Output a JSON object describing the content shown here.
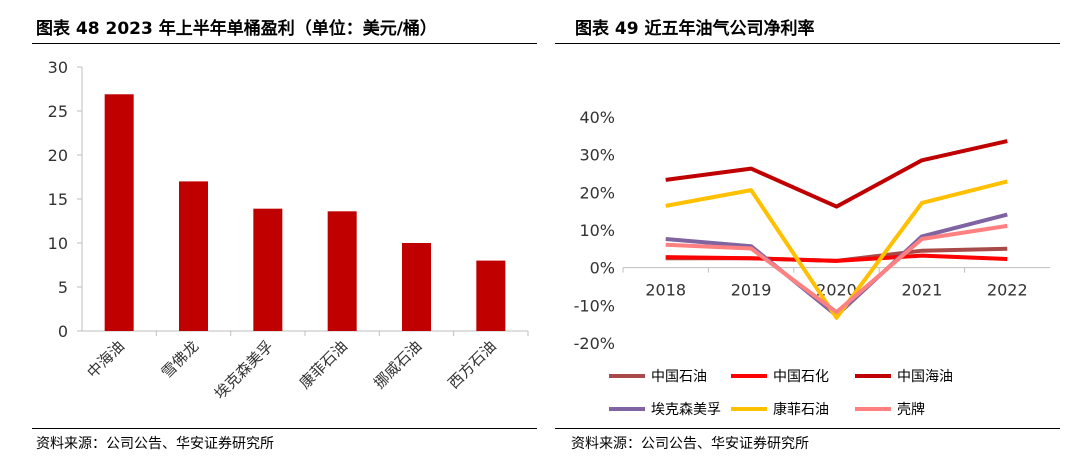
{
  "left": {
    "title": "图表 48  2023 年上半年单桶盈利（单位：美元/桶）",
    "source": "资料来源：公司公告、华安证券研究所"
  },
  "right": {
    "title": "图表 49 近五年油气公司净利率",
    "source": "资料来源：公司公告、华安证券研究所"
  },
  "chart_data": [
    {
      "type": "bar",
      "title": "2023 年上半年单桶盈利（单位：美元/桶）",
      "categories": [
        "中海油",
        "雪佛龙",
        "埃克森美孚",
        "康菲石油",
        "挪威石油",
        "西方石油"
      ],
      "values": [
        26.9,
        17.0,
        13.9,
        13.6,
        10.0,
        8.0
      ],
      "ylim": [
        0,
        30
      ],
      "yticks": [
        "0",
        "5",
        "10",
        "15",
        "20",
        "25",
        "30"
      ],
      "color": "#c00000",
      "xlabel": "",
      "ylabel": ""
    },
    {
      "type": "line",
      "title": "近五年油气公司净利率",
      "x": [
        "2018",
        "2019",
        "2020",
        "2021",
        "2022"
      ],
      "ylim": [
        -20,
        40
      ],
      "yticks": [
        "-20%",
        "-10%",
        "0%",
        "10%",
        "20%",
        "30%",
        "40%"
      ],
      "series": [
        {
          "name": "中国石油",
          "color": "#a94a4a",
          "values": [
            2.5,
            2.5,
            1.8,
            4.5,
            5.0
          ]
        },
        {
          "name": "中国石化",
          "color": "#ff0000",
          "values": [
            2.8,
            2.5,
            1.8,
            3.2,
            2.3
          ]
        },
        {
          "name": "中国海油",
          "color": "#c00000",
          "values": [
            23.3,
            26.3,
            16.2,
            28.5,
            33.6
          ]
        },
        {
          "name": "埃克森美孚",
          "color": "#8064a2",
          "values": [
            7.6,
            5.7,
            -12.7,
            8.3,
            14.1
          ]
        },
        {
          "name": "康菲石油",
          "color": "#ffc000",
          "values": [
            16.4,
            20.6,
            -13.3,
            17.2,
            22.9
          ]
        },
        {
          "name": "壳牌",
          "color": "#ff8080",
          "values": [
            6.1,
            5.1,
            -11.8,
            7.6,
            11.1
          ]
        }
      ]
    }
  ]
}
